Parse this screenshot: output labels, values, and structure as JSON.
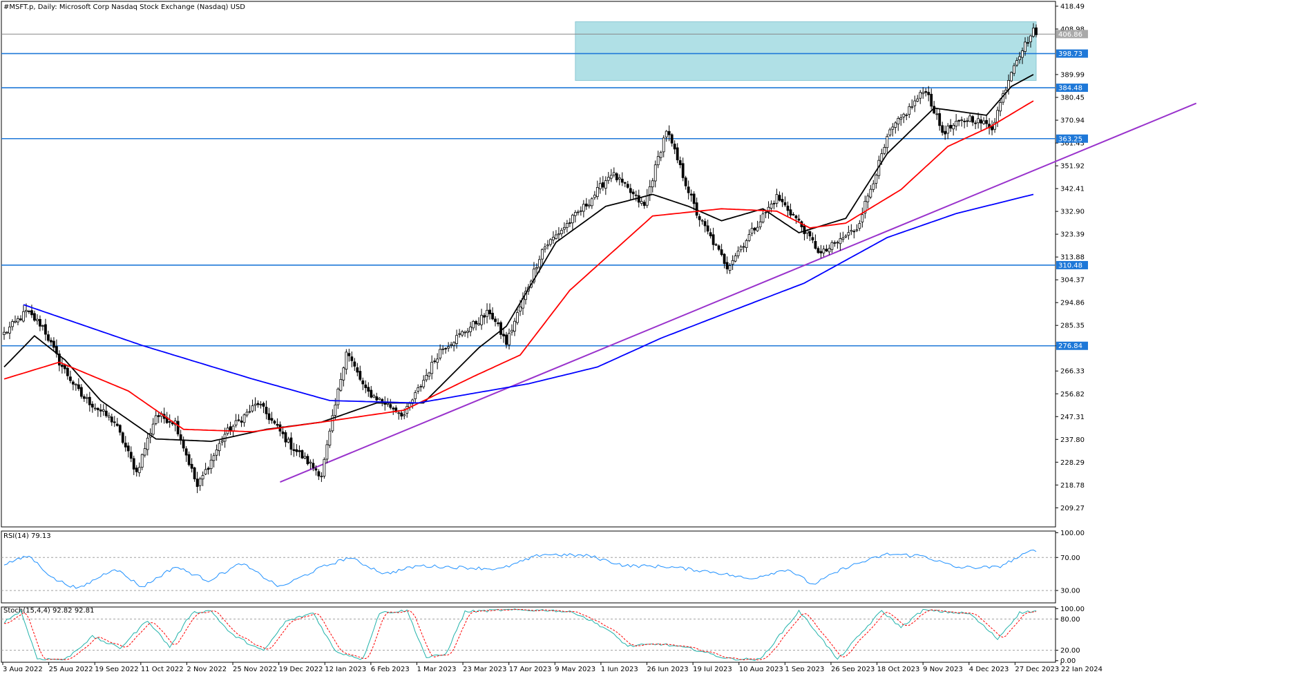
{
  "chart_data": {
    "type": "candlestick",
    "title": "#MSFT.p, Daily:  Microsoft Corp Nasdaq Stock Exchange (Nasdaq) USD",
    "price_axis": {
      "ylim": [
        201.3,
        420.5
      ],
      "ticks": [
        "418.49",
        "408.98",
        "389.99",
        "380.45",
        "370.94",
        "361.43",
        "351.92",
        "342.41",
        "332.90",
        "323.39",
        "313.88",
        "304.37",
        "294.86",
        "285.35",
        "276.84",
        "266.33",
        "256.82",
        "247.31",
        "237.80",
        "228.29",
        "218.78",
        "209.27"
      ]
    },
    "x_axis": {
      "labels": [
        "3 Aug 2022",
        "25 Aug 2022",
        "19 Sep 2022",
        "11 Oct 2022",
        "2 Nov 2022",
        "25 Nov 2022",
        "19 Dec 2022",
        "12 Jan 2023",
        "6 Feb 2023",
        "1 Mar 2023",
        "23 Mar 2023",
        "17 Apr 2023",
        "9 May 2023",
        "1 Jun 2023",
        "26 Jun 2023",
        "19 Jul 2023",
        "10 Aug 2023",
        "1 Sep 2023",
        "26 Sep 2023",
        "18 Oct 2023",
        "9 Nov 2023",
        "4 Dec 2023",
        "27 Dec 2023",
        "22 Jan 2024"
      ]
    },
    "current_price": "406.86",
    "horizontal_levels": [
      "398.73",
      "384.48",
      "363.25",
      "310.48",
      "276.84"
    ],
    "resistance_zone": {
      "x_start": 207,
      "x_end": 374,
      "low": 387.5,
      "high": 412.0
    },
    "trendline": {
      "x1": 100,
      "y1": 220.0,
      "x2": 432,
      "y2": 378.0
    },
    "candles": {
      "count": 375,
      "anchors": [
        [
          0,
          282
        ],
        [
          8,
          291
        ],
        [
          14,
          285
        ],
        [
          20,
          270
        ],
        [
          28,
          256
        ],
        [
          40,
          245
        ],
        [
          48,
          224
        ],
        [
          55,
          248
        ],
        [
          62,
          245
        ],
        [
          70,
          218
        ],
        [
          80,
          240
        ],
        [
          92,
          253
        ],
        [
          104,
          235
        ],
        [
          115,
          223
        ],
        [
          124,
          275
        ],
        [
          131,
          258
        ],
        [
          145,
          248
        ],
        [
          158,
          275
        ],
        [
          176,
          291
        ],
        [
          182,
          278
        ],
        [
          195,
          317
        ],
        [
          212,
          337
        ],
        [
          220,
          349
        ],
        [
          232,
          335
        ],
        [
          240,
          367
        ],
        [
          251,
          332
        ],
        [
          262,
          310
        ],
        [
          280,
          339
        ],
        [
          287,
          330
        ],
        [
          296,
          315
        ],
        [
          309,
          326
        ],
        [
          321,
          366
        ],
        [
          334,
          384
        ],
        [
          340,
          366
        ],
        [
          350,
          372
        ],
        [
          358,
          368
        ],
        [
          366,
          395
        ],
        [
          373,
          408
        ]
      ]
    },
    "moving_averages": [
      {
        "color": "#000000",
        "anchors": [
          [
            0,
            268
          ],
          [
            11,
            281
          ],
          [
            22,
            271
          ],
          [
            35,
            254
          ],
          [
            55,
            238
          ],
          [
            75,
            237
          ],
          [
            95,
            242
          ],
          [
            115,
            245
          ],
          [
            135,
            253
          ],
          [
            152,
            253
          ],
          [
            172,
            276
          ],
          [
            182,
            285
          ],
          [
            200,
            320
          ],
          [
            218,
            335
          ],
          [
            235,
            340
          ],
          [
            248,
            335
          ],
          [
            260,
            329
          ],
          [
            275,
            334
          ],
          [
            288,
            324
          ],
          [
            305,
            330
          ],
          [
            320,
            357
          ],
          [
            337,
            376
          ],
          [
            356,
            373
          ],
          [
            365,
            385
          ],
          [
            373,
            390
          ]
        ]
      },
      {
        "color": "#ff0000",
        "anchors": [
          [
            0,
            263
          ],
          [
            20,
            270
          ],
          [
            45,
            258
          ],
          [
            65,
            242
          ],
          [
            90,
            241
          ],
          [
            115,
            245
          ],
          [
            145,
            250
          ],
          [
            170,
            264
          ],
          [
            187,
            273
          ],
          [
            205,
            300
          ],
          [
            235,
            331
          ],
          [
            260,
            334
          ],
          [
            280,
            333
          ],
          [
            292,
            326
          ],
          [
            305,
            328
          ],
          [
            325,
            342
          ],
          [
            342,
            360
          ],
          [
            357,
            368
          ],
          [
            373,
            379
          ]
        ]
      },
      {
        "color": "#0000ff",
        "anchors": [
          [
            7,
            294
          ],
          [
            50,
            277
          ],
          [
            90,
            263
          ],
          [
            118,
            254
          ],
          [
            150,
            253
          ],
          [
            190,
            261
          ],
          [
            215,
            268
          ],
          [
            238,
            280
          ],
          [
            265,
            292
          ],
          [
            290,
            303
          ],
          [
            320,
            322
          ],
          [
            345,
            332
          ],
          [
            373,
            340
          ]
        ]
      }
    ],
    "rsi": {
      "label": "RSI(14) 79.13",
      "ylim": [
        15,
        102
      ],
      "ticks": [
        "100.00",
        "70.00",
        "30.00"
      ],
      "levels": [
        70,
        30
      ],
      "anchors": [
        [
          0,
          62
        ],
        [
          9,
          72
        ],
        [
          18,
          44
        ],
        [
          27,
          32
        ],
        [
          40,
          57
        ],
        [
          50,
          34
        ],
        [
          62,
          59
        ],
        [
          74,
          42
        ],
        [
          86,
          63
        ],
        [
          100,
          34
        ],
        [
          115,
          58
        ],
        [
          125,
          70
        ],
        [
          138,
          50
        ],
        [
          150,
          60
        ],
        [
          165,
          58
        ],
        [
          180,
          56
        ],
        [
          195,
          74
        ],
        [
          212,
          72
        ],
        [
          225,
          60
        ],
        [
          240,
          59
        ],
        [
          258,
          52
        ],
        [
          270,
          44
        ],
        [
          284,
          56
        ],
        [
          293,
          37
        ],
        [
          305,
          58
        ],
        [
          320,
          74
        ],
        [
          333,
          72
        ],
        [
          345,
          58
        ],
        [
          360,
          58
        ],
        [
          373,
          79
        ]
      ]
    },
    "stoch": {
      "label": "Stoch(15,4,4) 92.82 92.81",
      "ylim": [
        -3,
        103
      ],
      "ticks": [
        "100.00",
        "80.00",
        "20.00",
        "0.00"
      ],
      "levels": [
        80,
        20
      ],
      "anchors": [
        [
          0,
          74
        ],
        [
          6,
          96
        ],
        [
          12,
          4
        ],
        [
          22,
          2
        ],
        [
          32,
          46
        ],
        [
          42,
          24
        ],
        [
          52,
          78
        ],
        [
          60,
          26
        ],
        [
          68,
          92
        ],
        [
          75,
          96
        ],
        [
          82,
          52
        ],
        [
          94,
          18
        ],
        [
          102,
          75
        ],
        [
          112,
          92
        ],
        [
          120,
          18
        ],
        [
          130,
          3
        ],
        [
          136,
          92
        ],
        [
          146,
          96
        ],
        [
          153,
          6
        ],
        [
          160,
          12
        ],
        [
          167,
          94
        ],
        [
          180,
          97
        ],
        [
          198,
          97
        ],
        [
          207,
          92
        ],
        [
          218,
          62
        ],
        [
          226,
          28
        ],
        [
          238,
          32
        ],
        [
          250,
          22
        ],
        [
          262,
          4
        ],
        [
          274,
          2
        ],
        [
          288,
          95
        ],
        [
          294,
          58
        ],
        [
          302,
          2
        ],
        [
          318,
          96
        ],
        [
          325,
          64
        ],
        [
          333,
          97
        ],
        [
          350,
          90
        ],
        [
          360,
          42
        ],
        [
          368,
          92
        ],
        [
          373,
          95
        ]
      ]
    }
  }
}
